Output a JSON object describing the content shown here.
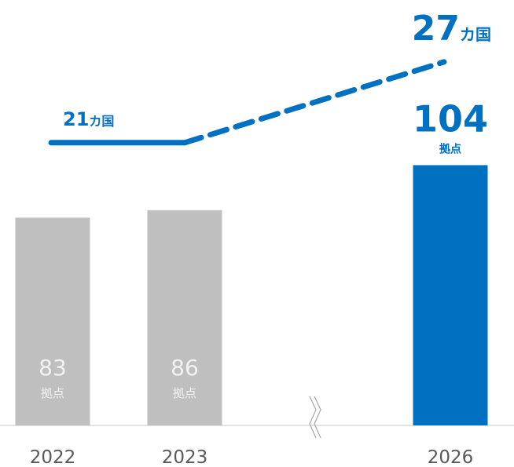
{
  "chart_data": {
    "type": "bar",
    "categories": [
      "2022",
      "2023",
      null,
      "2026"
    ],
    "series": [
      {
        "type": "bar",
        "values": [
          83,
          86,
          null,
          104
        ],
        "unit": "拠点",
        "color": "#bfbfbf",
        "highlight_color": "#0070c0",
        "highlight": 3
      },
      {
        "type": "line",
        "axis": "y2",
        "values": [
          21,
          21,
          null,
          27
        ],
        "unit": "カ国",
        "color": "#0070c0"
      }
    ],
    "ylim": [
      0,
      170
    ],
    "y2lim": [
      0,
      31.6
    ],
    "axis_break": 2
  }
}
